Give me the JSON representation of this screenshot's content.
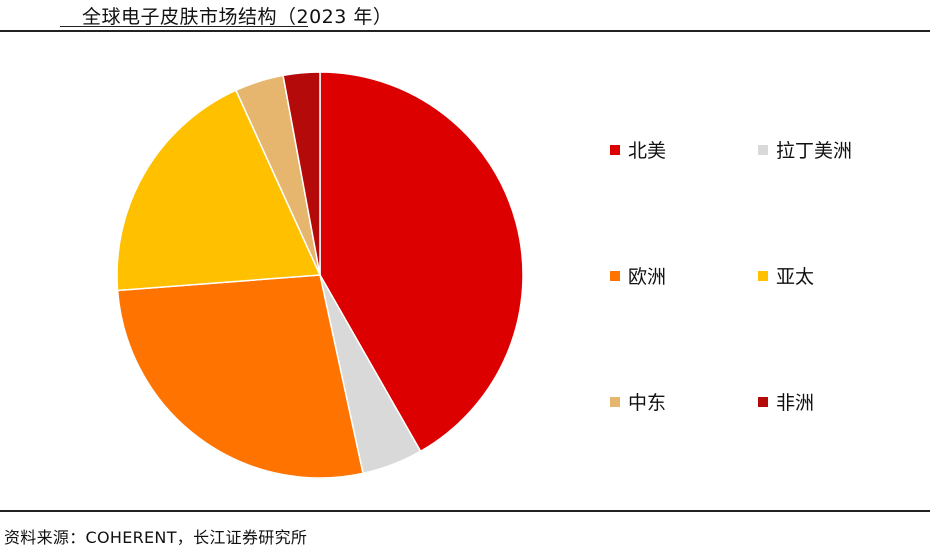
{
  "title": "全球电子皮肤市场结构（2023 年）",
  "source": "资料来源：COHERENT，长江证券研究所",
  "chart_data": {
    "type": "pie",
    "title": "全球电子皮肤市场结构（2023 年）",
    "start_angle_deg": 0,
    "direction": "clockwise",
    "slices": [
      {
        "label": "北美",
        "value": 43.0,
        "color": "#DD0000"
      },
      {
        "label": "拉丁美洲",
        "value": 5.0,
        "color": "#D9D9D9"
      },
      {
        "label": "欧洲",
        "value": 28.0,
        "color": "#FF7300"
      },
      {
        "label": "亚太",
        "value": 20.0,
        "color": "#FFC000"
      },
      {
        "label": "中东",
        "value": 4.0,
        "color": "#E6B66E"
      },
      {
        "label": "非洲",
        "value": 3.0,
        "color": "#B40A0A"
      }
    ],
    "legend_position": "right"
  }
}
